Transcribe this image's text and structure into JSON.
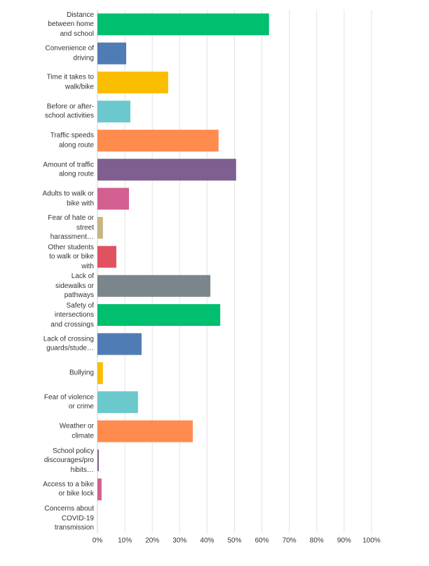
{
  "chart_data": {
    "type": "barh",
    "categories": [
      "Distance between home and school",
      "Convenience of driving",
      "Time it takes to walk/bike",
      "Before or after-school activities",
      "Traffic speeds along route",
      "Amount of traffic along route",
      "Adults to walk or bike with",
      "Fear of hate or street harassment…",
      "Other students to walk or bike with",
      "Lack of sidewalks or pathways",
      "Safety of intersections and crossings",
      "Lack of crossing guards/stude…",
      "Bullying",
      "Fear of violence or crime",
      "Weather or climate",
      "School policy discourages/pro hibits…",
      "Access to a bike or bike lock",
      "Concerns about COVID-19 transmission"
    ],
    "values": [
      62.6,
      10.5,
      25.8,
      12.0,
      44.2,
      50.6,
      11.5,
      2.0,
      6.9,
      41.2,
      44.8,
      16.1,
      2.0,
      14.8,
      34.8,
      0.5,
      1.5,
      0
    ],
    "colors": [
      "#00bf6f",
      "#507cb6",
      "#f9be00",
      "#6bc8cd",
      "#ff8b4f",
      "#7f5f90",
      "#d25f90",
      "#c8b580",
      "#e05260",
      "#7b868c",
      "#00bf6f",
      "#507cb6",
      "#f9be00",
      "#6bc8cd",
      "#ff8b4f",
      "#7f5f90",
      "#d25f90",
      "#c8b580"
    ],
    "xlim": [
      0,
      100
    ],
    "xticks": [
      {
        "value": 0,
        "label": "0%"
      },
      {
        "value": 10,
        "label": "10%"
      },
      {
        "value": 20,
        "label": "20%"
      },
      {
        "value": 30,
        "label": "30%"
      },
      {
        "value": 40,
        "label": "40%"
      },
      {
        "value": 50,
        "label": "50%"
      },
      {
        "value": 60,
        "label": "60%"
      },
      {
        "value": 70,
        "label": "70%"
      },
      {
        "value": 80,
        "label": "80%"
      },
      {
        "value": 90,
        "label": "90%"
      },
      {
        "value": 100,
        "label": "100%"
      }
    ],
    "grid": true
  }
}
